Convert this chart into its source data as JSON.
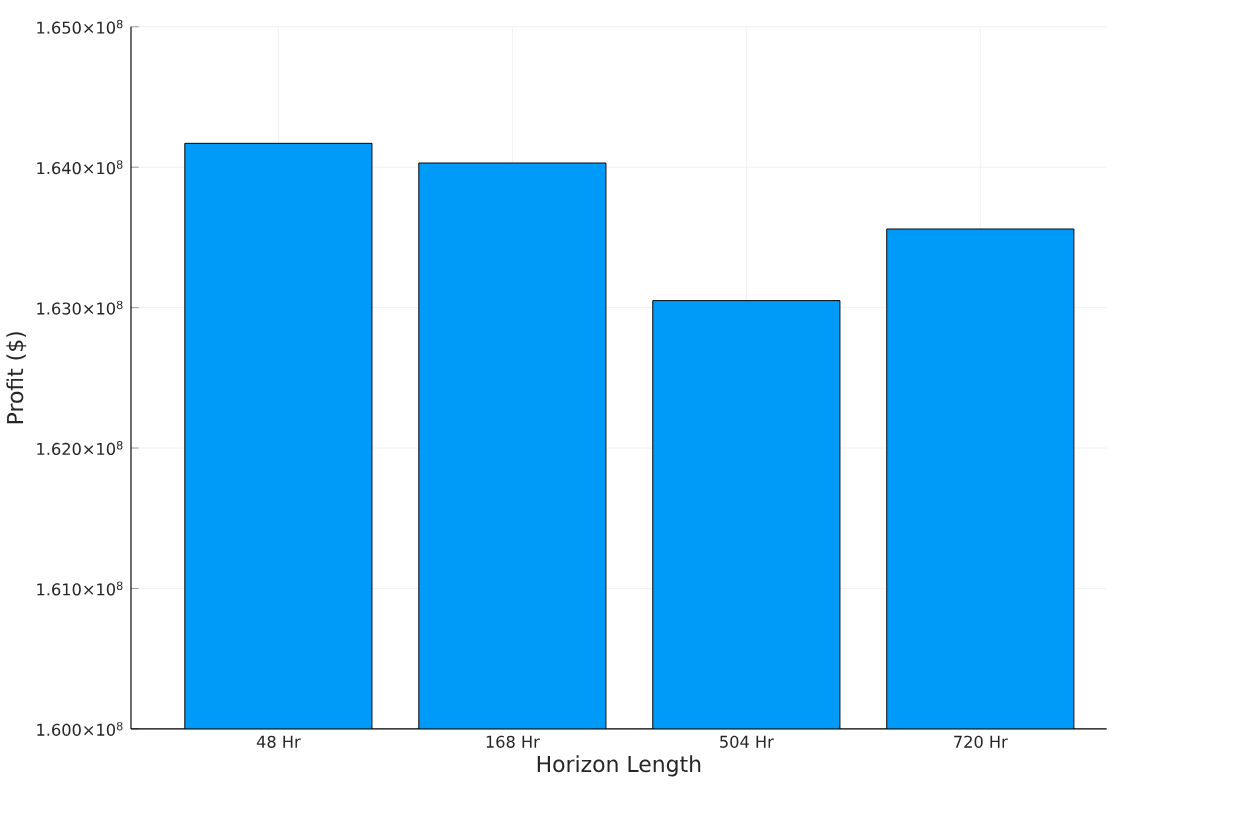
{
  "chart_data": {
    "type": "bar",
    "xlabel": "Horizon Length",
    "ylabel": "Profit ($)",
    "categories": [
      "48 Hr",
      "168 Hr",
      "504 Hr",
      "720 Hr"
    ],
    "values": [
      164170000,
      164030000,
      163050000,
      163560000
    ],
    "color": "#009af9",
    "ylim": [
      160000000,
      165000000
    ],
    "yticks": [
      {
        "value": 160000000,
        "label": "1.600×10$^{8}$"
      },
      {
        "value": 161000000,
        "label": "1.610×10$^{8}$"
      },
      {
        "value": 162000000,
        "label": "1.620×10$^{8}$"
      },
      {
        "value": 163000000,
        "label": "1.630×10$^{8}$"
      },
      {
        "value": 164000000,
        "label": "1.640×10$^{8}$"
      },
      {
        "value": 165000000,
        "label": "1.650×10$^{8}$"
      }
    ],
    "grid": true
  }
}
